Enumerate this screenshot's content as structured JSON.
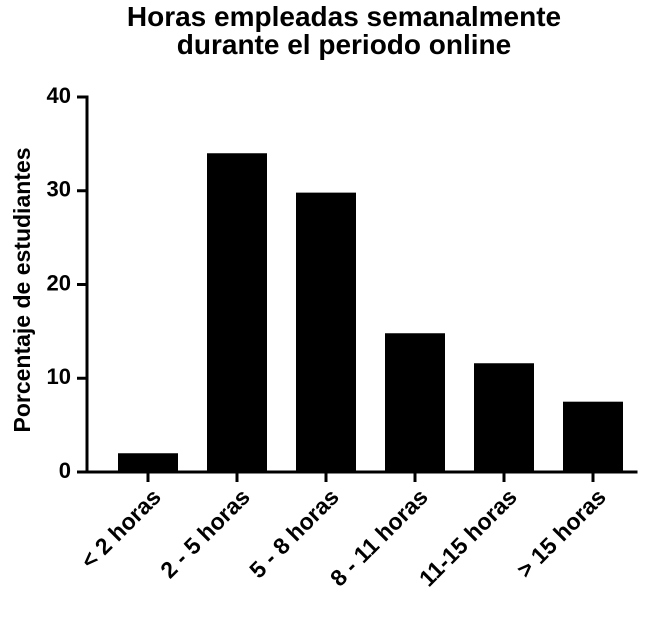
{
  "chart_data": {
    "type": "bar",
    "title": [
      "Horas empleadas semanalmente",
      "durante el periodo online"
    ],
    "y_label": "Porcentaje de estudiantes",
    "categories": [
      "< 2 horas",
      "2 - 5 horas",
      "5 - 8 horas",
      "8 - 11 horas",
      "11-15 horas",
      "> 15 horas"
    ],
    "values": [
      2,
      34,
      29.8,
      14.8,
      11.6,
      7.5
    ],
    "color": "#000000",
    "ylim": [
      0,
      40
    ],
    "yticks": [
      0,
      10,
      20,
      30,
      40
    ],
    "grid": false
  }
}
